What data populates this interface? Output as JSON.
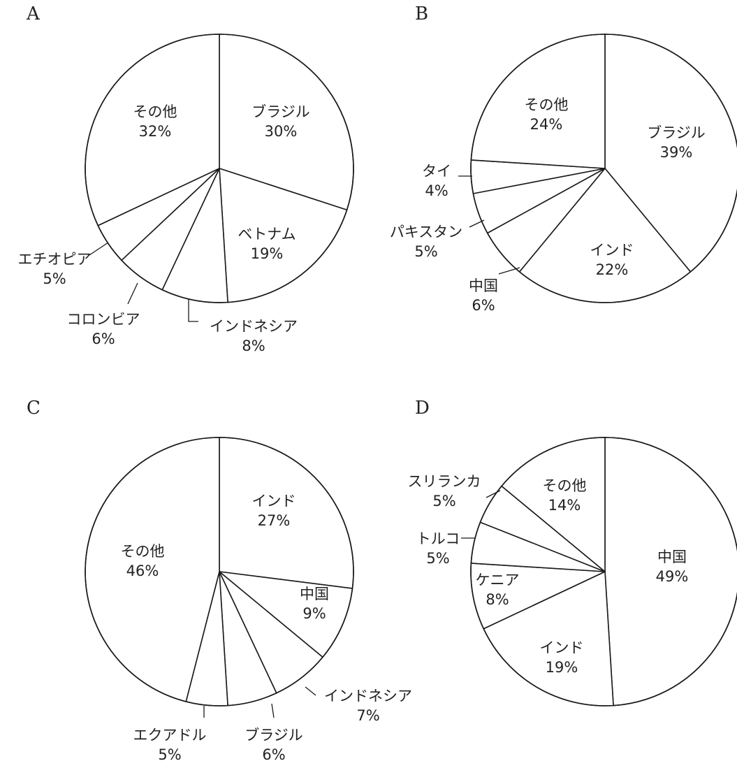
{
  "chart_data": [
    {
      "type": "pie",
      "panel": "A",
      "slices": [
        {
          "label": "ブラジル",
          "value": 30,
          "percent_text": "30%"
        },
        {
          "label": "ベトナム",
          "value": 19,
          "percent_text": "19%"
        },
        {
          "label": "インドネシア",
          "value": 8,
          "percent_text": "8%"
        },
        {
          "label": "コロンビア",
          "value": 6,
          "percent_text": "6%"
        },
        {
          "label": "エチオピア",
          "value": 5,
          "percent_text": "5%"
        },
        {
          "label": "その他",
          "value": 32,
          "percent_text": "32%"
        }
      ]
    },
    {
      "type": "pie",
      "panel": "B",
      "slices": [
        {
          "label": "ブラジル",
          "value": 39,
          "percent_text": "39%"
        },
        {
          "label": "インド",
          "value": 22,
          "percent_text": "22%"
        },
        {
          "label": "中国",
          "value": 6,
          "percent_text": "6%"
        },
        {
          "label": "パキスタン",
          "value": 5,
          "percent_text": "5%"
        },
        {
          "label": "タイ",
          "value": 4,
          "percent_text": "4%"
        },
        {
          "label": "その他",
          "value": 24,
          "percent_text": "24%"
        }
      ]
    },
    {
      "type": "pie",
      "panel": "C",
      "slices": [
        {
          "label": "インド",
          "value": 27,
          "percent_text": "27%"
        },
        {
          "label": "中国",
          "value": 9,
          "percent_text": "9%"
        },
        {
          "label": "インドネシア",
          "value": 7,
          "percent_text": "7%"
        },
        {
          "label": "ブラジル",
          "value": 6,
          "percent_text": "6%"
        },
        {
          "label": "エクアドル",
          "value": 5,
          "percent_text": "5%"
        },
        {
          "label": "その他",
          "value": 46,
          "percent_text": "46%"
        }
      ]
    },
    {
      "type": "pie",
      "panel": "D",
      "slices": [
        {
          "label": "中国",
          "value": 49,
          "percent_text": "49%"
        },
        {
          "label": "インド",
          "value": 19,
          "percent_text": "19%"
        },
        {
          "label": "ケニア",
          "value": 8,
          "percent_text": "8%"
        },
        {
          "label": "トルコ",
          "value": 5,
          "percent_text": "5%"
        },
        {
          "label": "スリランカ",
          "value": 5,
          "percent_text": "5%"
        },
        {
          "label": "その他",
          "value": 14,
          "percent_text": "14%"
        }
      ]
    }
  ]
}
